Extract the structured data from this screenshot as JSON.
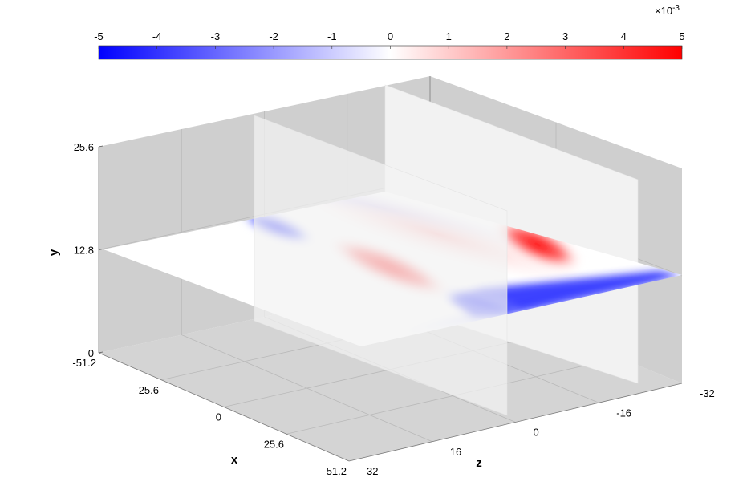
{
  "chart_data": {
    "type": "heatmap",
    "title": "",
    "colorbar": {
      "ticks": [
        "-5",
        "-4",
        "-3",
        "-2",
        "-1",
        "0",
        "1",
        "2",
        "3",
        "4",
        "5"
      ],
      "range": [
        -5,
        5
      ],
      "exponent_label": "×10",
      "exponent_value": "-3",
      "colormap": "blue-white-red",
      "low_color": "#0000ff",
      "mid_color": "#ffffff",
      "high_color": "#ff0000"
    },
    "axes": {
      "x": {
        "label": "x",
        "ticks": [
          "-51.2",
          "-25.6",
          "0",
          "25.6",
          "51.2"
        ],
        "range": [
          -51.2,
          51.2
        ]
      },
      "y": {
        "label": "y",
        "ticks": [
          "0",
          "12.8",
          "25.6"
        ],
        "range": [
          0,
          25.6
        ]
      },
      "z": {
        "label": "z",
        "ticks": [
          "32",
          "16",
          "0",
          "-16",
          "-32"
        ],
        "range": [
          -32,
          32
        ]
      }
    },
    "slices": [
      {
        "plane": "y",
        "at": 12.8
      },
      {
        "plane": "z",
        "at": 16
      },
      {
        "plane": "z",
        "at": -16
      }
    ],
    "field_blobs": [
      {
        "z": -29,
        "sign": "negative",
        "peak": -0.005
      },
      {
        "z": -12,
        "sign": "positive",
        "peak": 0.005
      },
      {
        "z": 10,
        "sign": "positive",
        "peak": 0.004
      },
      {
        "z": 24,
        "sign": "negative",
        "peak": -0.005
      }
    ],
    "grid": true,
    "box_color": "#d0d0d0"
  }
}
